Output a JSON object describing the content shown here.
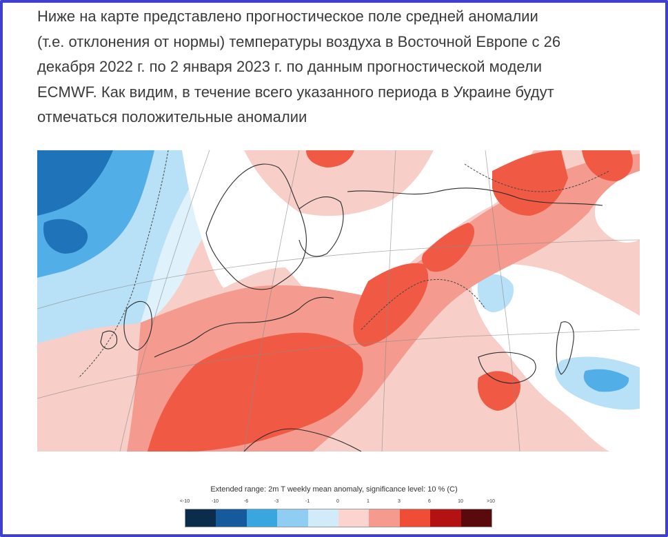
{
  "article": {
    "line1": "Ниже на карте представлено прогностическое поле средней аномалии",
    "line2": "(т.е. отклонения от нормы) температуры воздуха в Восточной Европе с 26",
    "line3": "декабря 2022 г. по 2 января 2023 г. по данным прогностической модели",
    "line4": "ECMWF. Как видим, в течение всего указанного периода в Украине будут",
    "line5": "отмечаться положительные аномалии"
  },
  "legend": {
    "title": "Extended range: 2m T weekly mean anomaly, significance level: 10 % (C)",
    "tick_labels": [
      "<-10",
      "-10",
      "-6",
      "-3",
      "-1",
      "0",
      "1",
      "3",
      "6",
      "10",
      ">10"
    ],
    "colors": [
      "#0b2c4a",
      "#155a9c",
      "#39a6e0",
      "#8fcdf2",
      "#d1ebf8",
      "#ffffff",
      "#fbd4cf",
      "#f79a8e",
      "#f04d36",
      "#b31212",
      "#5a0a0a"
    ]
  },
  "map": {
    "colors": {
      "deep_blue": "#1f73b8",
      "mid_blue": "#52aee6",
      "light_blue": "#b8e0f6",
      "pale_blue": "#dff1fb",
      "white": "#ffffff",
      "pale_red": "#f7cfc8",
      "light_red": "#f49a8e",
      "mid_red": "#f05a45",
      "coast": "#2a2a2a",
      "grid": "#8a8a8a"
    }
  }
}
